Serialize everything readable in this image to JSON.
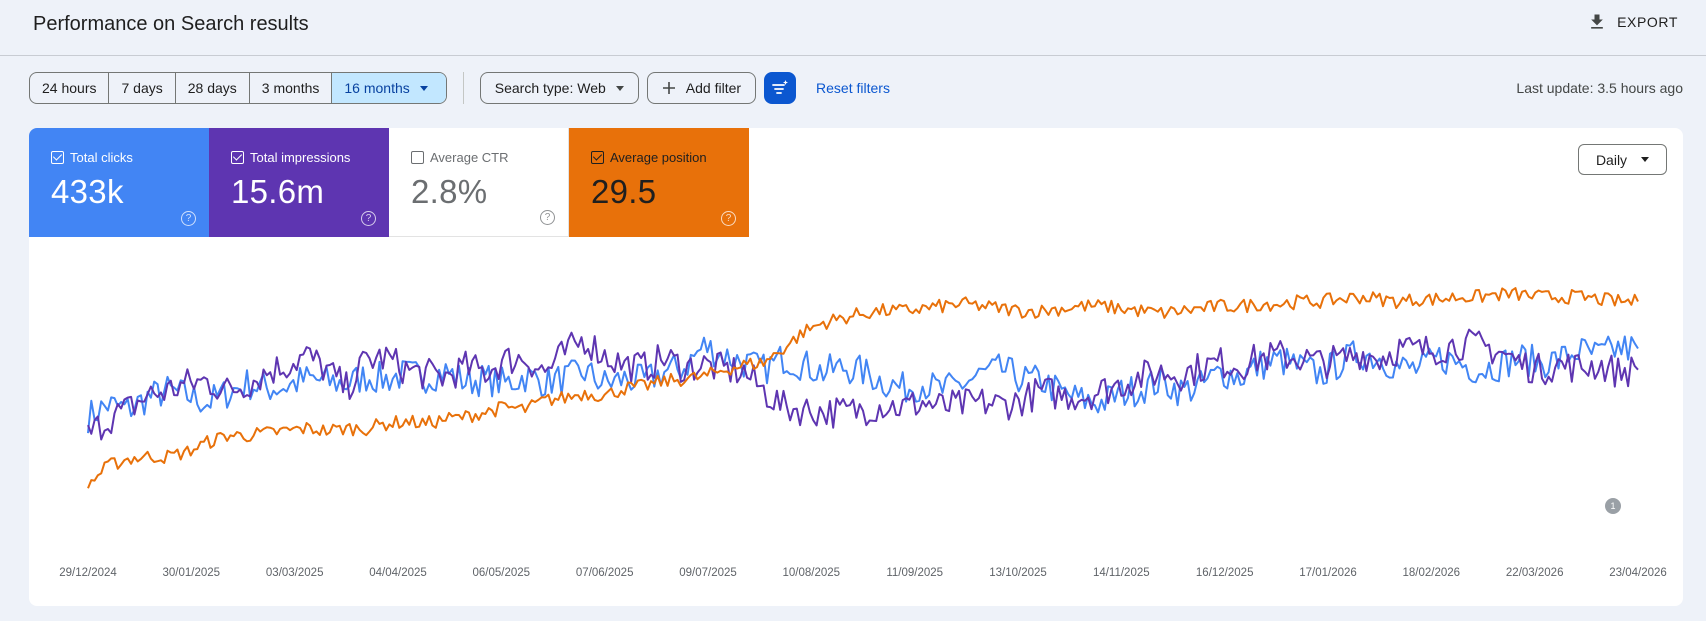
{
  "header": {
    "title": "Performance on Search results",
    "export_label": "EXPORT"
  },
  "toolbar": {
    "ranges": [
      "24 hours",
      "7 days",
      "28 days",
      "3 months",
      "16 months"
    ],
    "active_range": "16 months",
    "search_type": "Search type: Web",
    "add_filter": "Add filter",
    "reset_filters": "Reset filters",
    "last_update": "Last update: 3.5 hours ago"
  },
  "metrics": {
    "clicks": {
      "label": "Total clicks",
      "value": "433k",
      "checked": true,
      "color": "#4285f4"
    },
    "impressions": {
      "label": "Total impressions",
      "value": "15.6m",
      "checked": true,
      "color": "#5e35b1"
    },
    "ctr": {
      "label": "Average CTR",
      "value": "2.8%",
      "checked": false,
      "color": "#ffffff"
    },
    "position": {
      "label": "Average position",
      "value": "29.5",
      "checked": true,
      "color": "#e8710a"
    }
  },
  "granularity": "Daily",
  "chart_data": {
    "type": "line",
    "x_ticks": [
      "29/12/2024",
      "30/01/2025",
      "03/03/2025",
      "04/04/2025",
      "06/05/2025",
      "07/06/2025",
      "09/07/2025",
      "10/08/2025",
      "11/09/2025",
      "13/10/2025",
      "14/11/2025",
      "16/12/2025",
      "17/01/2026",
      "18/02/2026",
      "22/03/2026",
      "23/04/2026"
    ],
    "annotation": "1",
    "series": [
      {
        "name": "Total clicks",
        "color": "#4285f4",
        "values": [
          0.41,
          0.46,
          0.44,
          0.49,
          0.52,
          0.5,
          0.47,
          0.51,
          0.55,
          0.53,
          0.54,
          0.57,
          0.56,
          0.55,
          0.58,
          0.57,
          0.59,
          0.58,
          0.6,
          0.56,
          0.57,
          0.55,
          0.58,
          0.56,
          0.57,
          0.6,
          0.55,
          0.57,
          0.56,
          0.6,
          0.62,
          0.71,
          0.67,
          0.64,
          0.61,
          0.66,
          0.63,
          0.6,
          0.62,
          0.6,
          0.56,
          0.53,
          0.55,
          0.52,
          0.55,
          0.59,
          0.61,
          0.57,
          0.56,
          0.51,
          0.48,
          0.47,
          0.51,
          0.53,
          0.56,
          0.52,
          0.54,
          0.6,
          0.58,
          0.63,
          0.65,
          0.62,
          0.59,
          0.64,
          0.68,
          0.66,
          0.62,
          0.61,
          0.66,
          0.64,
          0.61,
          0.63,
          0.66,
          0.64,
          0.65,
          0.69,
          0.67,
          0.7,
          0.7
        ]
      },
      {
        "name": "Total impressions",
        "color": "#5e35b1",
        "values": [
          0.33,
          0.4,
          0.44,
          0.5,
          0.52,
          0.55,
          0.56,
          0.52,
          0.55,
          0.6,
          0.63,
          0.67,
          0.61,
          0.53,
          0.65,
          0.66,
          0.61,
          0.59,
          0.58,
          0.62,
          0.6,
          0.65,
          0.66,
          0.6,
          0.68,
          0.74,
          0.67,
          0.63,
          0.62,
          0.66,
          0.62,
          0.63,
          0.61,
          0.6,
          0.52,
          0.45,
          0.44,
          0.43,
          0.43,
          0.44,
          0.46,
          0.45,
          0.47,
          0.45,
          0.46,
          0.47,
          0.46,
          0.48,
          0.52,
          0.5,
          0.5,
          0.52,
          0.55,
          0.58,
          0.6,
          0.59,
          0.62,
          0.64,
          0.63,
          0.66,
          0.67,
          0.66,
          0.64,
          0.65,
          0.68,
          0.66,
          0.7,
          0.69,
          0.7,
          0.72,
          0.71,
          0.69,
          0.64,
          0.61,
          0.63,
          0.62,
          0.63,
          0.6,
          0.61
        ]
      },
      {
        "name": "Average position",
        "color": "#e8710a",
        "values": [
          0.12,
          0.2,
          0.23,
          0.24,
          0.24,
          0.26,
          0.3,
          0.33,
          0.33,
          0.34,
          0.35,
          0.36,
          0.35,
          0.36,
          0.36,
          0.38,
          0.39,
          0.38,
          0.4,
          0.41,
          0.43,
          0.45,
          0.44,
          0.48,
          0.49,
          0.51,
          0.5,
          0.53,
          0.54,
          0.56,
          0.57,
          0.58,
          0.61,
          0.63,
          0.64,
          0.7,
          0.77,
          0.81,
          0.83,
          0.85,
          0.86,
          0.86,
          0.87,
          0.88,
          0.89,
          0.88,
          0.87,
          0.86,
          0.86,
          0.87,
          0.88,
          0.88,
          0.87,
          0.86,
          0.85,
          0.86,
          0.87,
          0.88,
          0.88,
          0.89,
          0.89,
          0.9,
          0.9,
          0.91,
          0.92,
          0.91,
          0.9,
          0.91,
          0.91,
          0.92,
          0.92,
          0.93,
          0.93,
          0.92,
          0.92,
          0.92,
          0.91,
          0.9,
          0.9
        ]
      }
    ]
  }
}
